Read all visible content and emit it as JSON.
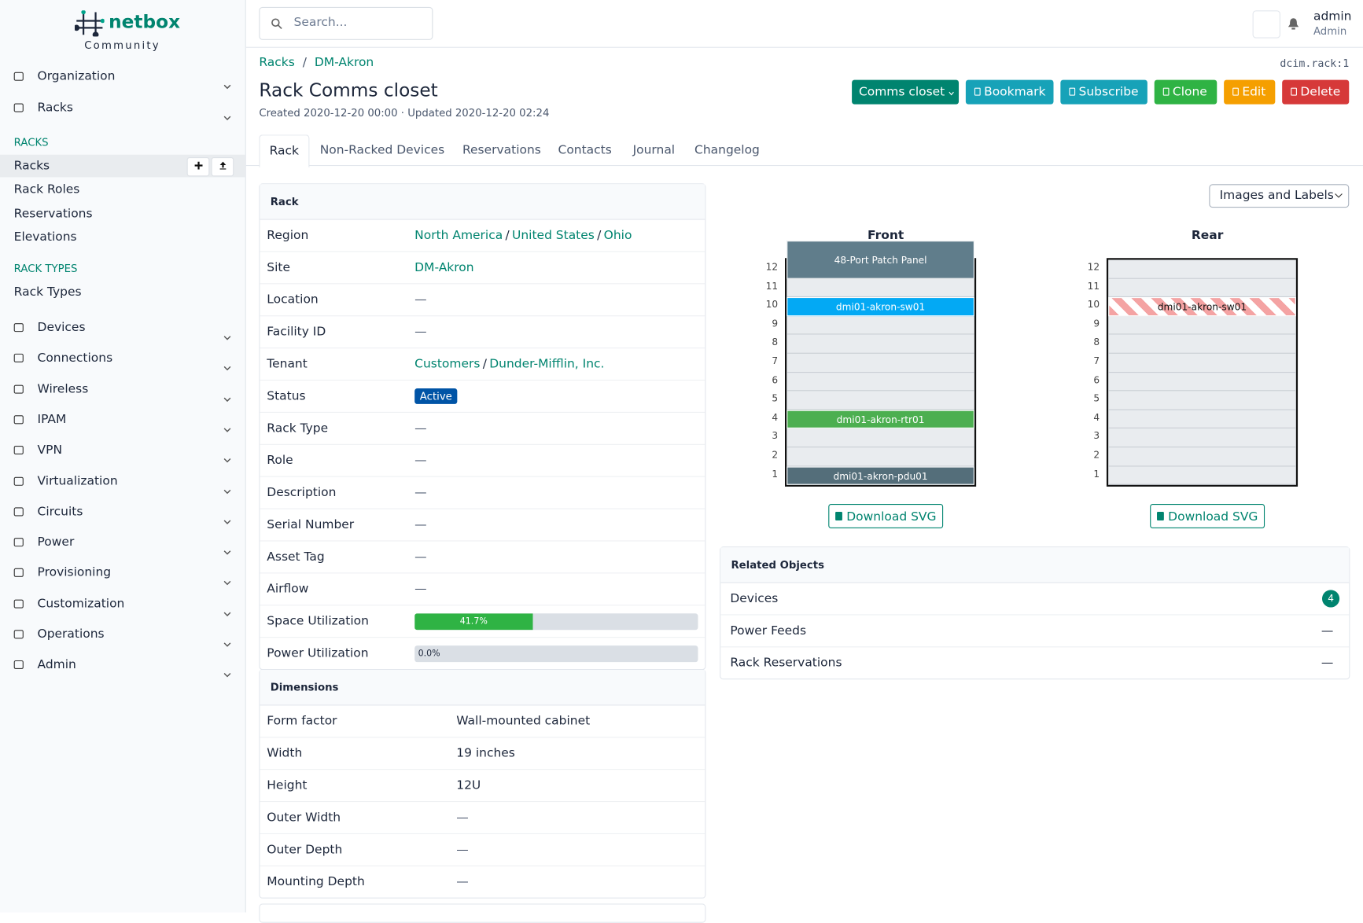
{
  "separator": "/",
  "sidebar": {
    "logo": "netbox",
    "logo_sub": "Community",
    "menu_top": [
      "Organization",
      "Racks"
    ],
    "sections": [
      {
        "title": "RACKS",
        "items": [
          "Racks",
          "Rack Roles",
          "Reservations",
          "Elevations"
        ]
      },
      {
        "title": "RACK TYPES",
        "items": [
          "Rack Types"
        ]
      }
    ],
    "menu": [
      "Devices",
      "Connections",
      "Wireless",
      "IPAM",
      "VPN",
      "Virtualization",
      "Circuits",
      "Power",
      "Provisioning",
      "Customization",
      "Operations",
      "Admin"
    ]
  },
  "header": {
    "search_placeholder": "Search...",
    "user": "admin",
    "role": "Admin"
  },
  "breadcrumb": [
    "Racks",
    "DM-Akron"
  ],
  "object_id": "dcim.rack:1",
  "title": "Rack Comms closet",
  "meta": "Created 2020-12-20 00:00 · Updated 2020-12-20 02:24",
  "buttons": [
    "Comms closet",
    "Bookmark",
    "Subscribe",
    "Clone",
    "Edit",
    "Delete"
  ],
  "tabs": [
    "Rack",
    "Non-Racked Devices",
    "Reservations",
    "Contacts",
    "Journal",
    "Changelog"
  ],
  "rack_panel": {
    "title": "Rack",
    "rows": [
      {
        "label": "Region",
        "links": [
          "North America",
          "United States",
          "Ohio"
        ]
      },
      {
        "label": "Site",
        "links": [
          "DM-Akron"
        ]
      },
      {
        "label": "Location",
        "value": "—"
      },
      {
        "label": "Facility ID",
        "value": "—"
      },
      {
        "label": "Tenant",
        "links": [
          "Customers",
          "Dunder-Mifflin, Inc."
        ]
      },
      {
        "label": "Status",
        "badge": "Active"
      },
      {
        "label": "Rack Type",
        "value": "—"
      },
      {
        "label": "Role",
        "value": "—"
      },
      {
        "label": "Description",
        "value": "—"
      },
      {
        "label": "Serial Number",
        "value": "—"
      },
      {
        "label": "Asset Tag",
        "value": "—"
      },
      {
        "label": "Airflow",
        "value": "—"
      },
      {
        "label": "Space Utilization",
        "progress": {
          "value": 41.7,
          "label": "41.7%"
        }
      },
      {
        "label": "Power Utilization",
        "progress": {
          "value": 0,
          "label": "0.0%"
        }
      }
    ]
  },
  "dimensions_panel": {
    "title": "Dimensions",
    "rows": [
      {
        "label": "Form factor",
        "value": "Wall-mounted cabinet"
      },
      {
        "label": "Width",
        "value": "19 inches"
      },
      {
        "label": "Height",
        "value": "12U"
      },
      {
        "label": "Outer Width",
        "value": "—"
      },
      {
        "label": "Outer Depth",
        "value": "—"
      },
      {
        "label": "Mounting Depth",
        "value": "—"
      }
    ]
  },
  "elevation": {
    "view_select": "Images and Labels",
    "download": "Download SVG",
    "front": {
      "title": "Front",
      "units": [
        12,
        11,
        10,
        9,
        8,
        7,
        6,
        5,
        4,
        3,
        2,
        1
      ],
      "devices": [
        "48-Port Patch Panel",
        "dmi01-akron-sw01",
        "dmi01-akron-rtr01",
        "dmi01-akron-pdu01"
      ]
    },
    "rear": {
      "title": "Rear",
      "units": [
        12,
        11,
        10,
        9,
        8,
        7,
        6,
        5,
        4,
        3,
        2,
        1
      ],
      "devices": [
        "dmi01-akron-sw01"
      ]
    }
  },
  "related": {
    "title": "Related Objects",
    "rows": [
      {
        "label": "Devices",
        "value": 4
      },
      {
        "label": "Power Feeds",
        "value": "—"
      },
      {
        "label": "Rack Reservations",
        "value": "—"
      }
    ]
  }
}
